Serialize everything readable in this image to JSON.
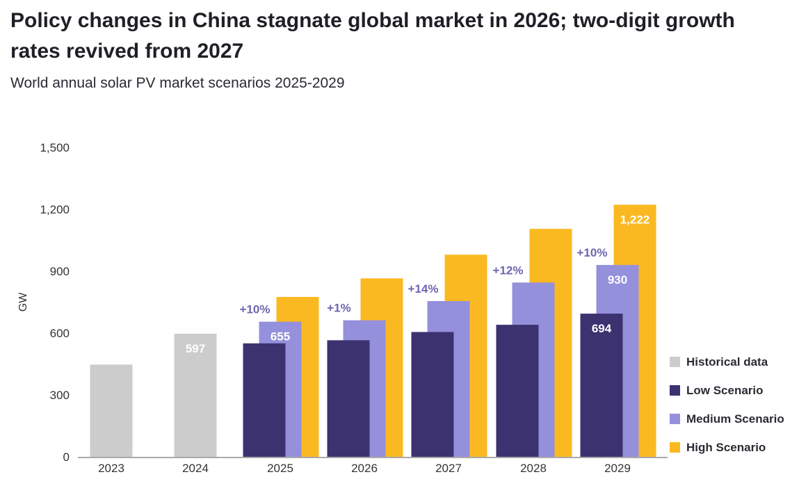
{
  "header": {
    "title": "Policy changes in China stagnate global market in 2026; two-digit growth rates revived from 2027",
    "subtitle": "World annual solar PV market scenarios 2025-2029"
  },
  "colors": {
    "historical": "#cccccc",
    "low": "#3c3270",
    "medium": "#9590db",
    "high": "#fbb921",
    "growth_text": "#6d66b0",
    "axis_text": "#333333",
    "data_label": "#ffffff"
  },
  "chart_data": {
    "type": "bar",
    "ylabel": "GW",
    "xlabel": "",
    "ylim": [
      0,
      1500
    ],
    "yticks": [
      0,
      300,
      600,
      900,
      1200,
      1500
    ],
    "ytick_labels": [
      "0",
      "300",
      "600",
      "900",
      "1,200",
      "1,500"
    ],
    "categories": [
      "2023",
      "2024",
      "2025",
      "2026",
      "2027",
      "2028",
      "2029"
    ],
    "grid": false,
    "legend_position": "right-bottom",
    "series": [
      {
        "name": "Historical data",
        "key": "historical",
        "values": [
          447,
          597,
          null,
          null,
          null,
          null,
          null
        ]
      },
      {
        "name": "Low Scenario",
        "key": "low",
        "values": [
          null,
          null,
          550,
          565,
          605,
          640,
          694
        ]
      },
      {
        "name": "Medium Scenario",
        "key": "medium",
        "values": [
          null,
          null,
          655,
          662,
          755,
          845,
          930
        ]
      },
      {
        "name": "High Scenario",
        "key": "high",
        "values": [
          null,
          null,
          775,
          865,
          980,
          1105,
          1222
        ]
      }
    ],
    "data_labels": [
      {
        "series": "historical",
        "category": "2024",
        "text": "597"
      },
      {
        "series": "medium",
        "category": "2025",
        "text": "655"
      },
      {
        "series": "medium",
        "category": "2029",
        "text": "930"
      },
      {
        "series": "high",
        "category": "2029",
        "text": "1,222"
      },
      {
        "series": "low",
        "category": "2029",
        "text": "694"
      }
    ],
    "growth_labels": [
      {
        "category": "2025",
        "text": "+10%"
      },
      {
        "category": "2026",
        "text": "+1%"
      },
      {
        "category": "2027",
        "text": "+14%"
      },
      {
        "category": "2028",
        "text": "+12%"
      },
      {
        "category": "2029",
        "text": "+10%"
      }
    ]
  },
  "legend": {
    "items": [
      {
        "label": "Historical data",
        "key": "historical"
      },
      {
        "label": "Low Scenario",
        "key": "low"
      },
      {
        "label": "Medium Scenario",
        "key": "medium"
      },
      {
        "label": "High Scenario",
        "key": "high"
      }
    ]
  }
}
